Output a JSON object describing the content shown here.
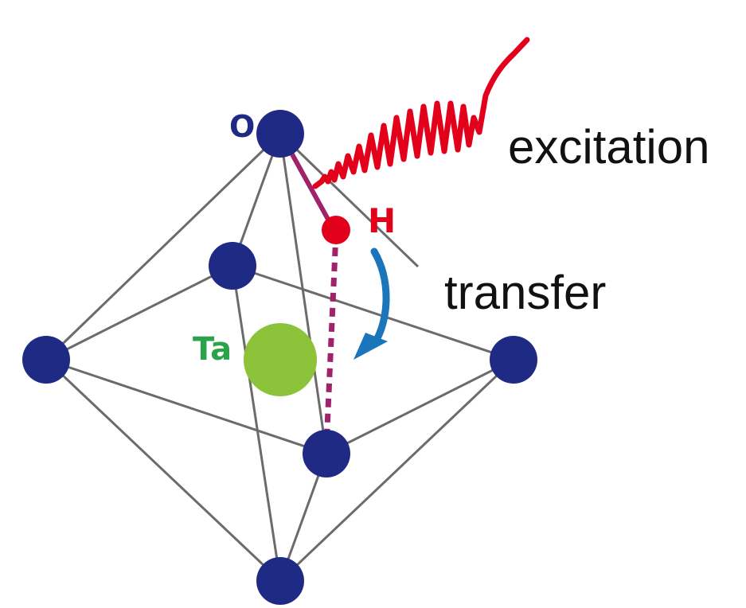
{
  "labels": {
    "oxygen": "O",
    "hydrogen": "H",
    "tantalum": "Ta",
    "excitation": "excitation",
    "transfer": "transfer"
  },
  "colors": {
    "oxygen_atom": "#1f2a85",
    "tantalum_atom": "#8cc33a",
    "tantalum_label": "#2aa34a",
    "hydrogen_atom": "#e3001b",
    "hydrogen_label": "#e3001b",
    "oh_bond": "#a0226a",
    "hydrogen_bond_dotted": "#a0226a",
    "excitation_wave": "#e3001b",
    "transfer_arrow": "#1b75bb",
    "edges": "#6b6b6b",
    "text": "#111111"
  },
  "icons": {
    "excitation": "wave-packet-icon",
    "transfer": "curved-arrow-icon"
  }
}
